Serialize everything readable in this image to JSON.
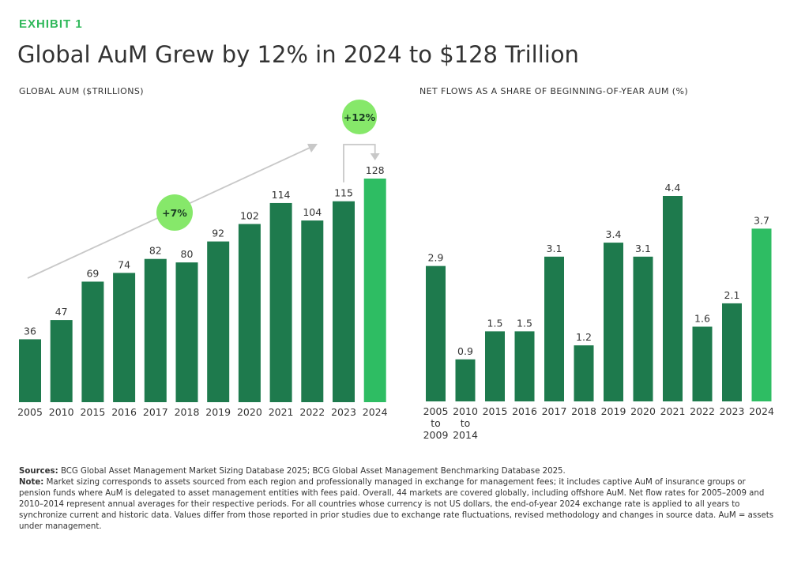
{
  "header": {
    "exhibit": "EXHIBIT 1",
    "title": "Global AuM Grew by 12% in 2024 to $128 Trillion"
  },
  "chart_data": [
    {
      "type": "bar",
      "title": "GLOBAL AUM ($TRILLIONS)",
      "categories": [
        "2005",
        "2010",
        "2015",
        "2016",
        "2017",
        "2018",
        "2019",
        "2020",
        "2021",
        "2022",
        "2023",
        "2024"
      ],
      "values": [
        36,
        47,
        69,
        74,
        82,
        80,
        92,
        102,
        114,
        104,
        115,
        128
      ],
      "value_labels": [
        "36",
        "47",
        "69",
        "74",
        "82",
        "80",
        "92",
        "102",
        "114",
        "104",
        "115",
        "128"
      ],
      "ylim": [
        0,
        128
      ],
      "grid": false,
      "colors": {
        "bar": "#1e7a4d",
        "highlight": "#2ebd63",
        "badge": "#86e86a",
        "arrow": "#c8c8c8"
      },
      "annotations": [
        {
          "text": "+7%",
          "from": "2005",
          "to": "2023"
        },
        {
          "text": "+12%",
          "from": "2023",
          "to": "2024"
        }
      ]
    },
    {
      "type": "bar",
      "title": "NET FLOWS AS A SHARE OF BEGINNING-OF-YEAR AUM (%)",
      "categories": [
        "2005\nto\n2009",
        "2010\nto\n2014",
        "2015",
        "2016",
        "2017",
        "2018",
        "2019",
        "2020",
        "2021",
        "2022",
        "2023",
        "2024"
      ],
      "values": [
        2.9,
        0.9,
        1.5,
        1.5,
        3.1,
        1.2,
        3.4,
        3.1,
        4.4,
        1.6,
        2.1,
        3.7
      ],
      "value_labels": [
        "2.9",
        "0.9",
        "1.5",
        "1.5",
        "3.1",
        "1.2",
        "3.4",
        "3.1",
        "4.4",
        "1.6",
        "2.1",
        "3.7"
      ],
      "ylim": [
        0,
        4.4
      ],
      "grid": false,
      "colors": {
        "bar": "#1e7a4d",
        "highlight": "#2ebd63"
      }
    }
  ],
  "footer": {
    "sources_label": "Sources:",
    "sources_text": "BCG Global Asset Management Market Sizing Database 2025; BCG Global Asset Management Benchmarking Database 2025.",
    "note_label": "Note:",
    "note_text": "Market sizing corresponds to assets sourced from each region and professionally managed in exchange for management fees; it includes captive AuM of insurance groups or pension funds where AuM is delegated to asset management entities with fees paid. Overall, 44 markets are covered globally, including offshore AuM. Net flow rates for 2005–2009 and 2010–2014 represent annual averages for their respective periods. For all countries whose currency is not US dollars, the end-of-year 2024 exchange rate is applied to all years to synchronize current and historic data. Values differ from those reported in prior studies due to exchange rate fluctuations, revised methodology and changes in source data. AuM = assets under management."
  }
}
